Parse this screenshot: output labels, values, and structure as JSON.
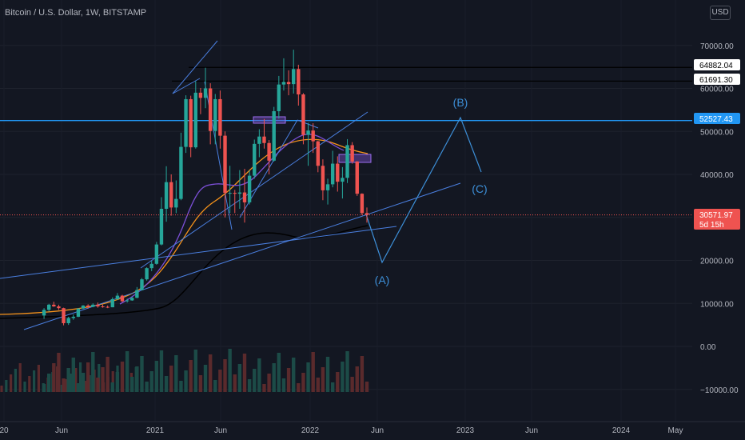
{
  "header": {
    "symbol_title": "Bitcoin / U.S. Dollar, 1W, BITSTAMP",
    "currency_button": "USD"
  },
  "colors": {
    "background": "#131722",
    "up": "#26a69a",
    "down": "#ef5350",
    "trendline": "#2962ff",
    "wave": "#3d8fd8",
    "ma_orange": "#f7931a",
    "ma_purple": "#7b4fd6"
  },
  "chart_data": {
    "type": "candlestick",
    "y_ticks": [
      70000,
      60000,
      50000,
      40000,
      30000,
      20000,
      10000,
      0,
      -10000
    ],
    "y_tick_labels": [
      "70000.00",
      "60000.00",
      "50000.00",
      "40000.00",
      "30000.00",
      "20000.00",
      "10000.00",
      "0.00",
      "−10000.00"
    ],
    "x_tick_labels": [
      "20",
      "Jun",
      "2021",
      "Jun",
      "2022",
      "Jun",
      "2023",
      "Jun",
      "2024",
      "May"
    ],
    "price_tags": [
      {
        "value": "64882.04",
        "style": "white"
      },
      {
        "value": "61691.30",
        "style": "white"
      },
      {
        "value": "52527.43",
        "style": "blue"
      },
      {
        "value": "30571.97",
        "sub": "5d 15h",
        "style": "red"
      }
    ],
    "wave_labels": [
      "(A)",
      "(B)",
      "(C)"
    ],
    "candles": [
      [
        7200,
        8900,
        6400,
        8500
      ],
      [
        8500,
        9900,
        8100,
        9700
      ],
      [
        9700,
        10400,
        9200,
        9300
      ],
      [
        9300,
        9700,
        8500,
        8900
      ],
      [
        8900,
        9000,
        4900,
        5400
      ],
      [
        5400,
        6900,
        5000,
        6600
      ],
      [
        6600,
        7400,
        6200,
        6900
      ],
      [
        6900,
        8900,
        6800,
        8800
      ],
      [
        8800,
        9600,
        8700,
        9500
      ],
      [
        9500,
        9800,
        8800,
        9200
      ],
      [
        9200,
        10000,
        9100,
        9700
      ],
      [
        9700,
        10200,
        9000,
        9300
      ],
      [
        9300,
        9700,
        9000,
        9200
      ],
      [
        9200,
        9500,
        8900,
        9100
      ],
      [
        9100,
        11400,
        9100,
        11000
      ],
      [
        11000,
        12400,
        10800,
        11800
      ],
      [
        11800,
        12000,
        10300,
        10500
      ],
      [
        10500,
        11100,
        10200,
        10700
      ],
      [
        10700,
        11500,
        10600,
        11300
      ],
      [
        11300,
        13800,
        11200,
        13100
      ],
      [
        13100,
        15900,
        13000,
        15600
      ],
      [
        15600,
        18400,
        15300,
        18200
      ],
      [
        18200,
        19900,
        17500,
        19200
      ],
      [
        19200,
        24300,
        19000,
        23700
      ],
      [
        23700,
        34700,
        23500,
        32000
      ],
      [
        32000,
        41900,
        29000,
        38200
      ],
      [
        38200,
        40000,
        30400,
        32300
      ],
      [
        32300,
        38600,
        31000,
        34300
      ],
      [
        34300,
        49700,
        34000,
        46400
      ],
      [
        46400,
        58400,
        45000,
        57500
      ],
      [
        57500,
        58300,
        44000,
        46300
      ],
      [
        46300,
        61700,
        46000,
        59000
      ],
      [
        59000,
        60100,
        54000,
        57800
      ],
      [
        57800,
        64800,
        55400,
        60000
      ],
      [
        60000,
        61200,
        47000,
        50100
      ],
      [
        50100,
        58700,
        47000,
        57500
      ],
      [
        57500,
        59500,
        46000,
        49000
      ],
      [
        49000,
        50000,
        30000,
        35700
      ],
      [
        35700,
        42000,
        31000,
        35700
      ],
      [
        35700,
        36400,
        31000,
        35500
      ],
      [
        35500,
        41000,
        32000,
        35800
      ],
      [
        35800,
        41300,
        28800,
        33500
      ],
      [
        33500,
        40900,
        33000,
        39700
      ],
      [
        39700,
        48100,
        39000,
        47100
      ],
      [
        47100,
        50500,
        44000,
        48800
      ],
      [
        48800,
        52900,
        46000,
        47300
      ],
      [
        47300,
        48000,
        40000,
        43200
      ],
      [
        43200,
        55700,
        43000,
        54700
      ],
      [
        54700,
        62900,
        53000,
        60900
      ],
      [
        60900,
        67000,
        59500,
        61500
      ],
      [
        61500,
        64200,
        58400,
        61000
      ],
      [
        61000,
        69000,
        58800,
        64500
      ],
      [
        64500,
        65500,
        56000,
        58600
      ],
      [
        58600,
        58900,
        47000,
        49200
      ],
      [
        49200,
        52000,
        42000,
        50200
      ],
      [
        50200,
        51900,
        45000,
        47700
      ],
      [
        47700,
        47800,
        40500,
        42000
      ],
      [
        42000,
        43500,
        34000,
        36300
      ],
      [
        36300,
        39000,
        33000,
        37700
      ],
      [
        37700,
        45500,
        37000,
        42500
      ],
      [
        42500,
        44200,
        36000,
        38300
      ],
      [
        38300,
        41700,
        34400,
        39200
      ],
      [
        39200,
        48200,
        38000,
        46800
      ],
      [
        46800,
        47500,
        42500,
        43000
      ],
      [
        43000,
        43100,
        35000,
        35500
      ],
      [
        35500,
        35600,
        30500,
        31000
      ],
      [
        31000,
        32300,
        28800,
        30572
      ]
    ]
  }
}
